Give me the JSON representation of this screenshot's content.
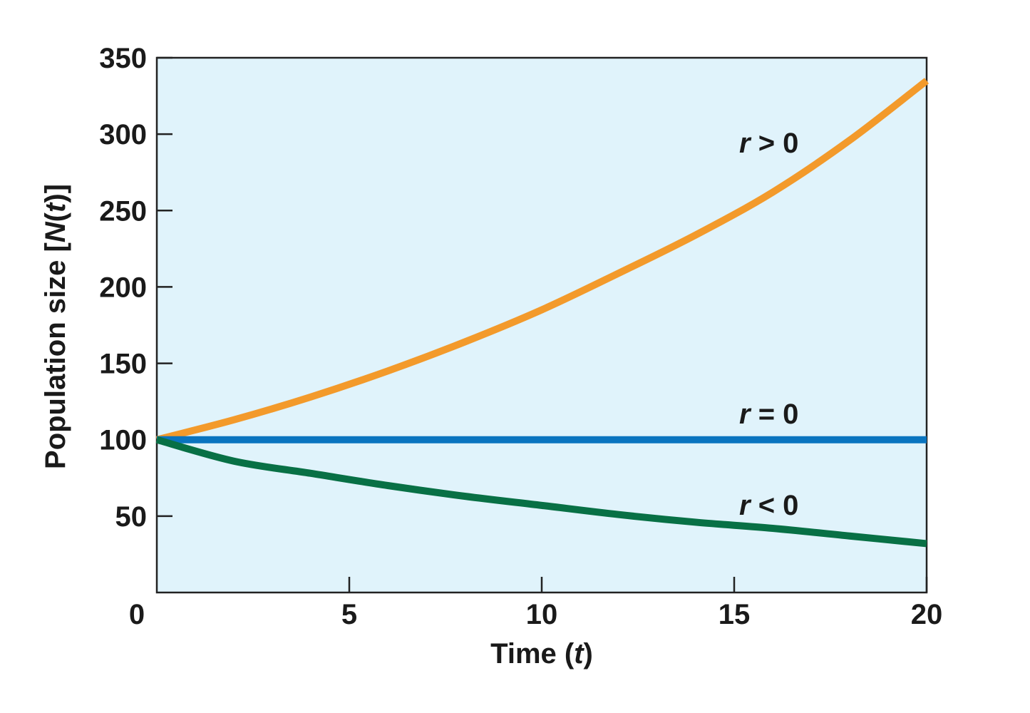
{
  "chart_data": {
    "type": "line",
    "title": "",
    "xlabel": {
      "prefix": "Time (",
      "var": "t",
      "suffix": ")"
    },
    "ylabel": {
      "prefix": "Population size [",
      "var": "N",
      "mid": "(",
      "var2": "t",
      "suffix": ")]"
    },
    "xlim": [
      0,
      20
    ],
    "ylim": [
      0,
      350
    ],
    "x_ticks": [
      5,
      10,
      15,
      20
    ],
    "x_tick_labels": [
      "0",
      "5",
      "10",
      "15",
      "20"
    ],
    "y_ticks": [
      50,
      100,
      150,
      200,
      250,
      300,
      350
    ],
    "y_tick_labels": [
      "50",
      "100",
      "150",
      "200",
      "250",
      "300",
      "350"
    ],
    "grid": false,
    "background": "#e0f3fb",
    "x": [
      0,
      2,
      4,
      6,
      8,
      10,
      12,
      14,
      16,
      18,
      20
    ],
    "series": [
      {
        "name": "r > 0",
        "label_var": "r",
        "label_op": " > 0",
        "color": "#f39a2b",
        "values": [
          100,
          113,
          128,
          145,
          164,
          185,
          209,
          234,
          262,
          296,
          335
        ]
      },
      {
        "name": "r = 0",
        "label_var": "r",
        "label_op": " = 0",
        "color": "#0a74bf",
        "values": [
          100,
          100,
          100,
          100,
          100,
          100,
          100,
          100,
          100,
          100,
          100
        ]
      },
      {
        "name": "r < 0",
        "label_var": "r",
        "label_op": " < 0",
        "color": "#087045",
        "values": [
          100,
          86,
          78,
          70,
          63,
          57,
          51,
          46,
          42,
          37,
          32
        ]
      }
    ]
  }
}
